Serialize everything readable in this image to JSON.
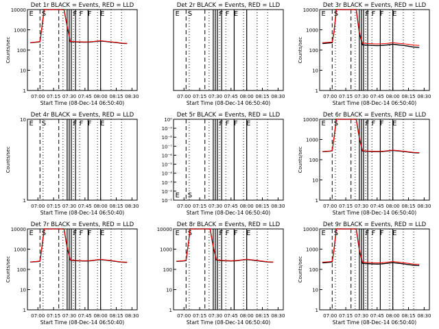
{
  "chart_data": [
    {
      "type": "line",
      "title": "Det 1r BLACK = Events, RED = LLD",
      "ylabel": "Counts/sec",
      "xlabel": "Start Time (08-Dec-14 06:50:40)",
      "x_ticks": [
        "07:00",
        "07:15",
        "07:30",
        "07:45",
        "08:00",
        "08:15",
        "08:30"
      ],
      "y_ticks": [
        "1",
        "10",
        "100",
        "1000",
        "10000"
      ],
      "yscale": "log",
      "ylim": [
        1,
        10000
      ],
      "flags": [
        "E",
        "S",
        "F",
        "F",
        "F",
        "E"
      ],
      "series": [
        {
          "color": "#000000",
          "x": [
            "06:53",
            "07:00",
            "07:02",
            "07:04",
            "07:06",
            "07:10",
            "07:20",
            "07:25",
            "07:28",
            "07:31",
            "07:35",
            "07:40",
            "07:45",
            "07:50",
            "07:55",
            "08:00",
            "08:05",
            "08:10",
            "08:15",
            "08:20",
            "08:25"
          ],
          "values": [
            230,
            250,
            260,
            1500,
            10000,
            10000,
            10000,
            10000,
            1500,
            260,
            255,
            250,
            245,
            250,
            265,
            280,
            265,
            250,
            235,
            215,
            210
          ]
        },
        {
          "color": "#ff0000",
          "x": [
            "06:53",
            "07:00",
            "07:02",
            "07:04",
            "07:06",
            "07:10",
            "07:20",
            "07:25",
            "07:28",
            "07:31",
            "07:35",
            "07:40",
            "07:45",
            "07:50",
            "07:55",
            "08:00",
            "08:05",
            "08:10",
            "08:15",
            "08:20",
            "08:25"
          ],
          "values": [
            235,
            255,
            265,
            1600,
            10000,
            10000,
            10000,
            10000,
            1600,
            270,
            262,
            258,
            252,
            258,
            272,
            290,
            272,
            256,
            240,
            220,
            215
          ]
        }
      ]
    },
    {
      "type": "line",
      "title": "Det 2r BLACK = Events, RED = LLD",
      "ylabel": "",
      "xlabel": "Start Time (08-Dec-14 06:50:40)",
      "x_ticks": [
        "07:00",
        "07:15",
        "07:30",
        "07:45",
        "08:00",
        "08:15",
        "08:30"
      ],
      "y_ticks": [],
      "yscale": "log",
      "ylim": [
        1,
        10000
      ],
      "flags": [
        "E",
        "S",
        "F",
        "F",
        "E"
      ],
      "series": []
    },
    {
      "type": "line",
      "title": "Det 3r BLACK = Events, RED = LLD",
      "ylabel": "Counts/sec",
      "xlabel": "Start Time (08-Dec-14 06:50:40)",
      "x_ticks": [
        "07:00",
        "07:15",
        "07:30",
        "07:45",
        "08:00",
        "08:15",
        "08:30"
      ],
      "y_ticks": [
        "1",
        "10",
        "100",
        "1000",
        "10000"
      ],
      "yscale": "log",
      "ylim": [
        1,
        10000
      ],
      "flags": [
        "E",
        "S",
        "F",
        "F",
        "F",
        "E"
      ],
      "series": [
        {
          "color": "#000000",
          "x": [
            "06:53",
            "07:00",
            "07:02",
            "07:04",
            "07:06",
            "07:10",
            "07:20",
            "07:25",
            "07:28",
            "07:31",
            "07:35",
            "07:40",
            "07:45",
            "07:50",
            "07:55",
            "08:00",
            "08:05",
            "08:10",
            "08:15",
            "08:20",
            "08:25"
          ],
          "values": [
            210,
            225,
            230,
            1000,
            10000,
            10000,
            10000,
            10000,
            700,
            180,
            175,
            170,
            165,
            170,
            180,
            195,
            180,
            170,
            155,
            140,
            135
          ]
        },
        {
          "color": "#ff0000",
          "x": [
            "06:53",
            "07:00",
            "07:02",
            "07:04",
            "07:06",
            "07:10",
            "07:20",
            "07:25",
            "07:28",
            "07:31",
            "07:35",
            "07:40",
            "07:45",
            "07:50",
            "07:55",
            "08:00",
            "08:05",
            "08:10",
            "08:15",
            "08:20",
            "08:25"
          ],
          "values": [
            230,
            245,
            250,
            1100,
            10000,
            10000,
            10000,
            10000,
            800,
            220,
            212,
            205,
            200,
            205,
            215,
            230,
            216,
            205,
            190,
            175,
            170
          ]
        }
      ]
    },
    {
      "type": "line",
      "title": "Det 4r BLACK = Events, RED = LLD",
      "ylabel": "Counts/sec",
      "xlabel": "Start Time (08-Dec-14 06:50:40)",
      "x_ticks": [
        "07:00",
        "07:15",
        "07:30",
        "07:45",
        "08:00",
        "08:15",
        "08:30"
      ],
      "y_ticks": [
        "1",
        "10"
      ],
      "yscale": "log",
      "ylim": [
        1,
        10
      ],
      "flags": [
        "E",
        "S",
        "F",
        "F",
        "F",
        "E"
      ],
      "series": []
    },
    {
      "type": "line",
      "title": "Det 5r BLACK = Events, RED = LLD",
      "ylabel": "",
      "xlabel": "Start Time (08-Dec-14 06:50:40)",
      "x_ticks": [
        "07:00",
        "07:15",
        "07:30",
        "07:45",
        "08:00",
        "08:15",
        "08:30"
      ],
      "y_ticks": [
        "10⁻¹",
        "10⁻²",
        "10⁻³",
        "10⁻⁴",
        "10⁻⁵",
        "10⁻⁶",
        "10⁻⁷",
        "10⁻⁸",
        "10⁻⁹",
        "10⁰"
      ],
      "yscale": "log",
      "ylim": [
        1,
        1e-09
      ],
      "flags": [
        "E",
        "S",
        "F",
        "F",
        "F",
        "E"
      ],
      "series": []
    },
    {
      "type": "line",
      "title": "Det 6r BLACK = Events, RED = LLD",
      "ylabel": "Counts/sec",
      "xlabel": "Start Time (08-Dec-14 06:50:40)",
      "x_ticks": [
        "07:00",
        "07:15",
        "07:30",
        "07:45",
        "08:00",
        "08:15",
        "08:30"
      ],
      "y_ticks": [
        "1",
        "10",
        "100",
        "1000",
        "10000"
      ],
      "yscale": "log",
      "ylim": [
        1,
        10000
      ],
      "flags": [
        "E",
        "S",
        "F",
        "F",
        "F",
        "E"
      ],
      "series": [
        {
          "color": "#000000",
          "x": [
            "06:53",
            "07:00",
            "07:02",
            "07:04",
            "07:06",
            "07:10",
            "07:20",
            "07:25",
            "07:28",
            "07:31",
            "07:35",
            "07:40",
            "07:45",
            "07:50",
            "07:55",
            "08:00",
            "08:05",
            "08:10",
            "08:15",
            "08:20",
            "08:25"
          ],
          "values": [
            250,
            265,
            275,
            1500,
            10000,
            10000,
            10000,
            10000,
            1200,
            270,
            262,
            255,
            250,
            255,
            270,
            290,
            272,
            258,
            240,
            222,
            218
          ]
        },
        {
          "color": "#ff0000",
          "x": [
            "06:53",
            "07:00",
            "07:02",
            "07:04",
            "07:06",
            "07:10",
            "07:20",
            "07:25",
            "07:28",
            "07:31",
            "07:35",
            "07:40",
            "07:45",
            "07:50",
            "07:55",
            "08:00",
            "08:05",
            "08:10",
            "08:15",
            "08:20",
            "08:25"
          ],
          "values": [
            255,
            272,
            280,
            1600,
            10000,
            10000,
            10000,
            10000,
            1300,
            280,
            270,
            263,
            258,
            263,
            278,
            298,
            280,
            265,
            247,
            230,
            225
          ]
        }
      ]
    },
    {
      "type": "line",
      "title": "Det 7r BLACK = Events, RED = LLD",
      "ylabel": "Counts/sec",
      "xlabel": "Start Time (08-Dec-14 06:50:40)",
      "x_ticks": [
        "07:00",
        "07:15",
        "07:30",
        "07:45",
        "08:00",
        "08:15",
        "08:30"
      ],
      "y_ticks": [
        "1",
        "10",
        "100",
        "1000",
        "10000"
      ],
      "yscale": "log",
      "ylim": [
        1,
        10000
      ],
      "flags": [
        "E",
        "S",
        "F",
        "F",
        "F",
        "E"
      ],
      "series": [
        {
          "color": "#000000",
          "x": [
            "06:53",
            "07:00",
            "07:02",
            "07:04",
            "07:06",
            "07:10",
            "07:20",
            "07:25",
            "07:28",
            "07:31",
            "07:35",
            "07:40",
            "07:45",
            "07:50",
            "07:55",
            "08:00",
            "08:05",
            "08:10",
            "08:15",
            "08:20",
            "08:25"
          ],
          "values": [
            230,
            245,
            255,
            1400,
            10000,
            10000,
            10000,
            10000,
            1200,
            290,
            270,
            265,
            260,
            265,
            285,
            305,
            285,
            268,
            248,
            228,
            222
          ]
        },
        {
          "color": "#ff0000",
          "x": [
            "06:53",
            "07:00",
            "07:02",
            "07:04",
            "07:06",
            "07:10",
            "07:20",
            "07:25",
            "07:28",
            "07:31",
            "07:35",
            "07:40",
            "07:45",
            "07:50",
            "07:55",
            "08:00",
            "08:05",
            "08:10",
            "08:15",
            "08:20",
            "08:25"
          ],
          "values": [
            235,
            250,
            262,
            1500,
            10000,
            10000,
            10000,
            10000,
            1300,
            298,
            278,
            272,
            267,
            272,
            292,
            312,
            292,
            275,
            254,
            234,
            228
          ]
        }
      ]
    },
    {
      "type": "line",
      "title": "Det 8r BLACK = Events, RED = LLD",
      "ylabel": "",
      "xlabel": "Start Time (08-Dec-14 06:50:40)",
      "x_ticks": [
        "07:00",
        "07:15",
        "07:30",
        "07:45",
        "08:00",
        "08:15",
        "08:30"
      ],
      "y_ticks": [
        "1",
        "10",
        "100",
        "1000",
        "10000"
      ],
      "yscale": "log",
      "ylim": [
        1,
        10000
      ],
      "flags": [
        "E",
        "S",
        "F",
        "F",
        "F",
        "E"
      ],
      "series": [
        {
          "color": "#000000",
          "x": [
            "06:53",
            "07:00",
            "07:02",
            "07:04",
            "07:06",
            "07:10",
            "07:20",
            "07:25",
            "07:28",
            "07:31",
            "07:35",
            "07:40",
            "07:45",
            "07:50",
            "07:55",
            "08:00",
            "08:05",
            "08:10",
            "08:15",
            "08:20",
            "08:25"
          ],
          "values": [
            250,
            262,
            270,
            1600,
            10000,
            10000,
            10000,
            10000,
            1300,
            290,
            272,
            266,
            262,
            268,
            288,
            310,
            290,
            270,
            250,
            232,
            226
          ]
        },
        {
          "color": "#ff0000",
          "x": [
            "06:53",
            "07:00",
            "07:02",
            "07:04",
            "07:06",
            "07:10",
            "07:20",
            "07:25",
            "07:28",
            "07:31",
            "07:35",
            "07:40",
            "07:45",
            "07:50",
            "07:55",
            "08:00",
            "08:05",
            "08:10",
            "08:15",
            "08:20",
            "08:25"
          ],
          "values": [
            256,
            270,
            278,
            1700,
            10000,
            10000,
            10000,
            10000,
            1400,
            298,
            280,
            273,
            268,
            275,
            295,
            318,
            298,
            278,
            257,
            238,
            232
          ]
        }
      ]
    },
    {
      "type": "line",
      "title": "Det 9r BLACK = Events, RED = LLD",
      "ylabel": "Counts/sec",
      "xlabel": "Start Time (08-Dec-14 06:50:40)",
      "x_ticks": [
        "07:00",
        "07:15",
        "07:30",
        "07:45",
        "08:00",
        "08:15",
        "08:30"
      ],
      "y_ticks": [
        "1",
        "10",
        "100",
        "1000",
        "10000"
      ],
      "yscale": "log",
      "ylim": [
        1,
        10000
      ],
      "flags": [
        "E",
        "S",
        "F",
        "F",
        "F",
        "E"
      ],
      "series": [
        {
          "color": "#000000",
          "x": [
            "06:53",
            "07:00",
            "07:02",
            "07:04",
            "07:06",
            "07:10",
            "07:20",
            "07:25",
            "07:28",
            "07:31",
            "07:35",
            "07:40",
            "07:45",
            "07:50",
            "07:55",
            "08:00",
            "08:05",
            "08:10",
            "08:15",
            "08:20",
            "08:25"
          ],
          "values": [
            210,
            225,
            235,
            1200,
            10000,
            10000,
            10000,
            10000,
            900,
            200,
            192,
            186,
            182,
            188,
            200,
            215,
            200,
            188,
            172,
            160,
            155
          ]
        },
        {
          "color": "#ff0000",
          "x": [
            "06:53",
            "07:00",
            "07:02",
            "07:04",
            "07:06",
            "07:10",
            "07:20",
            "07:25",
            "07:28",
            "07:31",
            "07:35",
            "07:40",
            "07:45",
            "07:50",
            "07:55",
            "08:00",
            "08:05",
            "08:10",
            "08:15",
            "08:20",
            "08:25"
          ],
          "values": [
            228,
            242,
            252,
            1300,
            10000,
            10000,
            10000,
            10000,
            1000,
            230,
            220,
            213,
            208,
            214,
            228,
            245,
            228,
            215,
            198,
            184,
            178
          ]
        }
      ]
    }
  ]
}
